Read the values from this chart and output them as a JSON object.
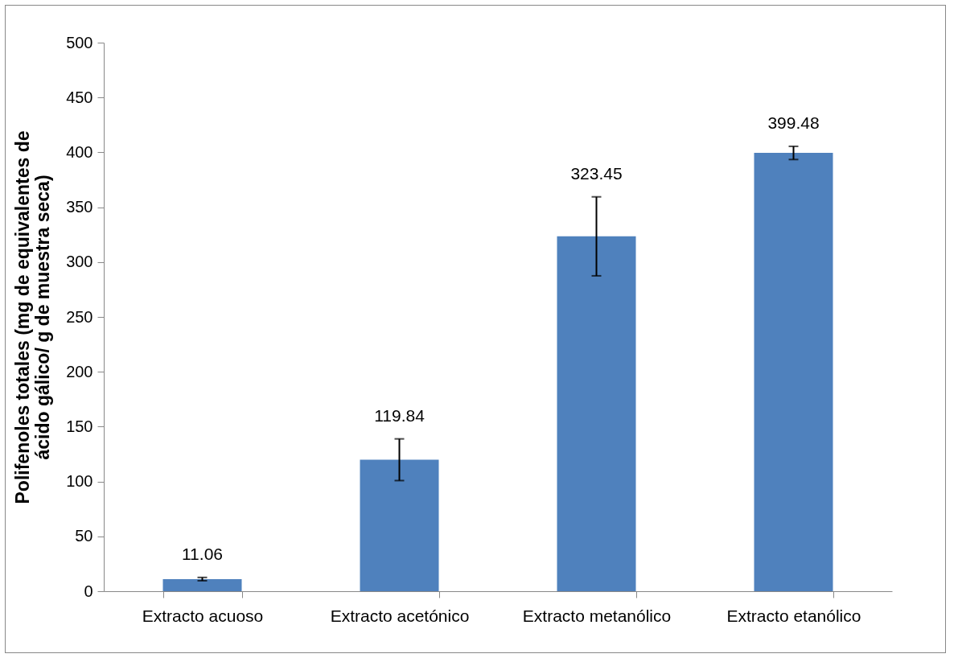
{
  "chart_data": {
    "type": "bar",
    "ylabel": "Polifenoles totales (mg de equivalentes de ácido gálico/ g de muestra seca)",
    "categories": [
      "Extracto acuoso",
      "Extracto acetónico",
      "Extracto metanólico",
      "Extracto etanólico"
    ],
    "values": [
      11.06,
      119.84,
      323.45,
      399.48
    ],
    "errors": [
      1.5,
      19,
      36,
      6
    ],
    "color": "#4f81bd",
    "ylim": [
      0,
      500
    ],
    "yticks": [
      0,
      50,
      100,
      150,
      200,
      250,
      300,
      350,
      400,
      450,
      500
    ],
    "grid": false,
    "data_labels": true
  }
}
